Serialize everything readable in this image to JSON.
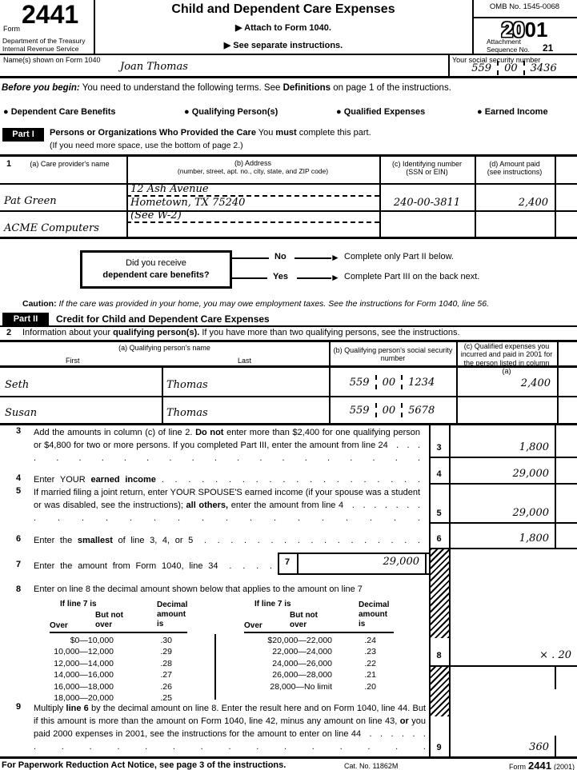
{
  "colors": {
    "ink": "#000000",
    "paper": "#ffffff"
  },
  "header": {
    "form_label": "Form",
    "form_number": "2441",
    "dept_line1": "Department of the Treasury",
    "dept_line2": "Internal Revenue Service",
    "title": "Child and Dependent Care Expenses",
    "attach_line": "▶ Attach to Form 1040.",
    "see_line": "▶ See separate instructions.",
    "omb": "OMB No. 1545-0068",
    "year_outline": "20",
    "year_solid": "01",
    "attachment_label": "Attachment",
    "sequence_label": "Sequence No.",
    "sequence_no": "21"
  },
  "name_row": {
    "label": "Name(s) shown on Form 1040",
    "value": "Joan Thomas",
    "ssn_label": "Your social security number",
    "ssn": [
      "559",
      "00",
      "3436"
    ]
  },
  "before": [
    [
      "Before you begin:",
      "bi"
    ],
    [
      " You need to understand the following terms. See ",
      ""
    ],
    [
      "Definitions",
      "b"
    ],
    [
      " on page 1 of the instructions.",
      ""
    ]
  ],
  "terms": {
    "bullet": "●",
    "items": [
      "Dependent Care Benefits",
      "Qualifying Person(s)",
      "Qualified Expenses",
      "Earned Income"
    ]
  },
  "part1": {
    "badge": "Part I",
    "heading": [
      [
        "Persons or Organizations Who Provided the Care",
        "b"
      ],
      [
        "  You ",
        ""
      ],
      [
        "must",
        "b"
      ],
      [
        " complete this part.",
        ""
      ]
    ],
    "subheading": "(If you need more space, use the bottom of page 2.)",
    "row_num": "1",
    "col_a": "(a) Care provider's name",
    "col_b_1": "(b) Address",
    "col_b_2": "(number, street, apt. no., city, state, and ZIP code)",
    "col_c_1": "(c) Identifying number",
    "col_c_2": "(SSN or EIN)",
    "col_d_1": "(d) Amount paid",
    "col_d_2": "(see instructions)",
    "rows": [
      {
        "name": "Pat Green",
        "addr1": "12 Ash Avenue",
        "addr2": "Hometown, TX 75240",
        "id": "240-00-3811",
        "amount": "2,400"
      },
      {
        "name": "ACME Computers",
        "addr1": "(See W-2)",
        "addr2": "",
        "id": "",
        "amount": ""
      }
    ]
  },
  "flowchart": {
    "question_line1": "Did you receive",
    "question_line2": "dependent care benefits?",
    "no_label": "No",
    "yes_label": "Yes",
    "arrow": "►",
    "no_result": "Complete only Part II below.",
    "yes_result": "Complete Part III on the back next."
  },
  "caution": [
    [
      "Caution:",
      "b"
    ],
    [
      " If the care was provided in your home, you may owe employment taxes. See the instructions for Form 1040, line 56.",
      "i"
    ]
  ],
  "part2": {
    "badge": "Part II",
    "heading": "Credit for Child and Dependent Care Expenses",
    "line2_num": "2",
    "line2": [
      [
        "Information about your ",
        ""
      ],
      [
        "qualifying person(s).",
        "b"
      ],
      [
        " If you have more than two qualifying persons, see the instructions.",
        ""
      ]
    ],
    "col_a": "(a) Qualifying person's name",
    "col_a_first": "First",
    "col_a_last": "Last",
    "col_b": "(b) Qualifying person's social security number",
    "col_c": "(c) Qualified expenses you incurred and paid in 2001 for the person listed in column (a)",
    "persons": [
      {
        "first": "Seth",
        "last": "Thomas",
        "ssn": [
          "559",
          "00",
          "1234"
        ],
        "amount": "2,400"
      },
      {
        "first": "Susan",
        "last": "Thomas",
        "ssn": [
          "559",
          "00",
          "5678"
        ],
        "amount": ""
      }
    ]
  },
  "lines": {
    "l3": {
      "num": "3",
      "text": [
        [
          "Add the amounts in column (c) of line 2. ",
          ""
        ],
        [
          "Do not",
          "b"
        ],
        [
          " enter more than $2,400 for one qualifying person or $4,800 for two or more persons. If you completed Part III, enter the amount from line 24",
          ""
        ],
        [
          "  . . . . . . . . . . . . . . . . . . . . .",
          "d"
        ]
      ],
      "value": "1,800"
    },
    "l4": {
      "num": "4",
      "text": [
        [
          "Enter YOUR ",
          ""
        ],
        [
          "earned income",
          "b"
        ],
        [
          " ",
          ""
        ],
        [
          ". . . . . . . . . . . . . . . . . . . .",
          "d"
        ]
      ],
      "value": "29,000"
    },
    "l5": {
      "num": "5",
      "text": [
        [
          "If married filing a joint return, enter YOUR SPOUSE'S earned income (if your spouse was a student or was disabled, see the instructions); ",
          ""
        ],
        [
          "all others,",
          "b"
        ],
        [
          " enter the amount from line 4",
          ""
        ],
        [
          "  . . . . . . . . . . . . . . . . . . . . . . . .",
          "d"
        ]
      ],
      "value": "29,000"
    },
    "l6": {
      "num": "6",
      "text": [
        [
          "Enter the ",
          ""
        ],
        [
          "smallest",
          "b"
        ],
        [
          " of line 3, 4, or 5",
          ""
        ],
        [
          "  . . . . . . . . . . . . . . . . .",
          "d"
        ]
      ],
      "value": "1,800"
    },
    "l7": {
      "num": "7",
      "text": [
        [
          "Enter the amount from Form 1040, line 34",
          ""
        ],
        [
          "  . . . .",
          "d"
        ]
      ],
      "box_num": "7",
      "value": "29,000"
    },
    "l8": {
      "num": "8",
      "text": [
        [
          "Enter on line 8 the decimal amount shown below that applies to the amount on line 7",
          ""
        ]
      ],
      "value": "× . 20"
    },
    "l9": {
      "num": "9",
      "text": [
        [
          "Multiply ",
          ""
        ],
        [
          "line 6",
          "b"
        ],
        [
          " by the decimal amount on line 8. Enter the result here and on Form 1040, line 44. But if this amount is more than the amount on Form 1040, line 42, minus any amount on line 43, ",
          ""
        ],
        [
          "or",
          "b"
        ],
        [
          " you paid 2000 expenses in 2001, see the instructions for the amount to enter on line 44",
          ""
        ],
        [
          "  . . . . . . . . . . . . . . . . . . . . .",
          "d"
        ]
      ],
      "value": "360"
    }
  },
  "decimal_table": {
    "if_label": "If line 7 is",
    "over_label": "Over",
    "but_not_over_label": "But not over",
    "decimal_label": "Decimal amount is",
    "left": [
      {
        "range": "$0—10,000",
        "decimal": ".30"
      },
      {
        "range": "10,000—12,000",
        "decimal": ".29"
      },
      {
        "range": "12,000—14,000",
        "decimal": ".28"
      },
      {
        "range": "14,000—16,000",
        "decimal": ".27"
      },
      {
        "range": "16,000—18,000",
        "decimal": ".26"
      },
      {
        "range": "18,000—20,000",
        "decimal": ".25"
      }
    ],
    "right": [
      {
        "range": "$20,000—22,000",
        "decimal": ".24"
      },
      {
        "range": "22,000—24,000",
        "decimal": ".23"
      },
      {
        "range": "24,000—26,000",
        "decimal": ".22"
      },
      {
        "range": "26,000—28,000",
        "decimal": ".21"
      },
      {
        "range": "28,000—No limit",
        "decimal": ".20"
      }
    ]
  },
  "footer": {
    "left": "For Paperwork Reduction Act Notice, see page 3 of the instructions.",
    "cat": "Cat. No. 11862M",
    "form_label": "Form",
    "form_number": "2441",
    "year": "(2001)"
  }
}
